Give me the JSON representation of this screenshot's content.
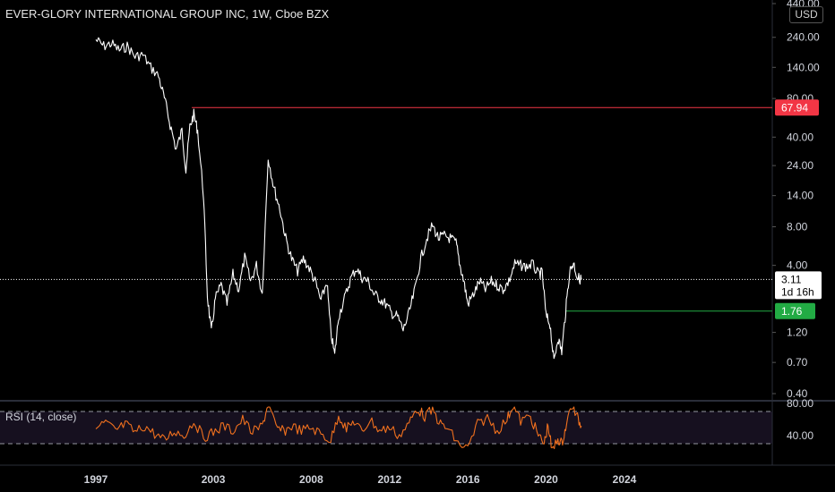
{
  "header": {
    "title": "EVER-GLORY INTERNATIONAL GROUP INC, 1W, Cboe BZX",
    "currency": "USD"
  },
  "colors": {
    "background": "#000000",
    "price_line": "#ffffff",
    "rsi_line": "#f0701e",
    "resistance": "#f23645",
    "support": "#22ab44",
    "rsi_band": "#16101f"
  },
  "chart_data": [
    {
      "type": "line",
      "title": "EVER-GLORY INTERNATIONAL GROUP INC, 1W, Cboe BZX",
      "scale": "log",
      "ylim": [
        0.4,
        440
      ],
      "y_ticks": [
        "440.00",
        "240.00",
        "140.00",
        "80.00",
        "40.00",
        "24.00",
        "14.00",
        "8.00",
        "4.00",
        "1.20",
        "0.70",
        "0.40"
      ],
      "x_ticks": [
        "1997",
        "2003",
        "2008",
        "2012",
        "2016",
        "2020",
        "2024"
      ],
      "series": [
        {
          "values": [
            [
              1997.0,
              230
            ],
            [
              1997.4,
              205
            ],
            [
              1997.8,
              215
            ],
            [
              1998.2,
              190
            ],
            [
              1998.6,
              205
            ],
            [
              1999.0,
              170
            ],
            [
              1999.4,
              175
            ],
            [
              1999.8,
              140
            ],
            [
              2000.2,
              120
            ],
            [
              2000.5,
              80
            ],
            [
              2000.8,
              50
            ],
            [
              2001.1,
              32
            ],
            [
              2001.4,
              45
            ],
            [
              2001.6,
              22
            ],
            [
              2001.8,
              48
            ],
            [
              2002.0,
              60
            ],
            [
              2002.2,
              45
            ],
            [
              2002.5,
              14
            ],
            [
              2002.7,
              2.3
            ],
            [
              2002.9,
              1.2
            ],
            [
              2003.1,
              2.2
            ],
            [
              2003.4,
              2.8
            ],
            [
              2003.7,
              2.0
            ],
            [
              2004.0,
              3.4
            ],
            [
              2004.3,
              2.6
            ],
            [
              2004.6,
              4.6
            ],
            [
              2004.9,
              3.0
            ],
            [
              2005.2,
              4.0
            ],
            [
              2005.5,
              2.4
            ],
            [
              2005.8,
              28
            ],
            [
              2006.1,
              16
            ],
            [
              2006.4,
              11
            ],
            [
              2006.7,
              6.5
            ],
            [
              2007.0,
              4.5
            ],
            [
              2007.3,
              3.6
            ],
            [
              2007.6,
              4.5
            ],
            [
              2007.9,
              3.8
            ],
            [
              2008.2,
              3.0
            ],
            [
              2008.5,
              2.1
            ],
            [
              2008.8,
              3.0
            ],
            [
              2009.0,
              1.2
            ],
            [
              2009.2,
              0.8
            ],
            [
              2009.4,
              1.6
            ],
            [
              2009.7,
              2.2
            ],
            [
              2010.0,
              3.1
            ],
            [
              2010.3,
              3.8
            ],
            [
              2010.6,
              3.2
            ],
            [
              2010.9,
              3.0
            ],
            [
              2011.2,
              2.4
            ],
            [
              2011.5,
              2.2
            ],
            [
              2011.8,
              2.0
            ],
            [
              2012.1,
              1.7
            ],
            [
              2012.4,
              1.6
            ],
            [
              2012.7,
              1.25
            ],
            [
              2013.0,
              1.7
            ],
            [
              2013.3,
              2.6
            ],
            [
              2013.6,
              4.5
            ],
            [
              2013.9,
              6.5
            ],
            [
              2014.2,
              8.2
            ],
            [
              2014.5,
              6.5
            ],
            [
              2014.8,
              6.8
            ],
            [
              2015.1,
              6.5
            ],
            [
              2015.4,
              6.0
            ],
            [
              2015.6,
              4.0
            ],
            [
              2015.8,
              3.0
            ],
            [
              2016.0,
              2.0
            ],
            [
              2016.3,
              2.4
            ],
            [
              2016.6,
              3.0
            ],
            [
              2016.9,
              2.6
            ],
            [
              2017.2,
              3.0
            ],
            [
              2017.5,
              2.8
            ],
            [
              2017.8,
              2.6
            ],
            [
              2018.1,
              3.0
            ],
            [
              2018.4,
              4.1
            ],
            [
              2018.7,
              4.0
            ],
            [
              2019.0,
              3.9
            ],
            [
              2019.3,
              4.1
            ],
            [
              2019.6,
              3.4
            ],
            [
              2019.8,
              3.5
            ],
            [
              2020.0,
              1.6
            ],
            [
              2020.2,
              1.4
            ],
            [
              2020.4,
              0.7
            ],
            [
              2020.6,
              1.1
            ],
            [
              2020.8,
              0.85
            ],
            [
              2021.0,
              1.76
            ],
            [
              2021.2,
              3.6
            ],
            [
              2021.4,
              4.2
            ],
            [
              2021.6,
              3.2
            ],
            [
              2021.8,
              3.11
            ]
          ]
        }
      ],
      "annotations": [
        {
          "label": "67.94",
          "value": 67.94,
          "from_x": 2001.9,
          "style": "resistance"
        },
        {
          "label": "1.76",
          "value": 1.76,
          "from_x": 2021.0,
          "style": "support"
        }
      ],
      "last_price": {
        "value": 3.11,
        "label": "3.11",
        "countdown": "1d 16h"
      }
    },
    {
      "type": "line",
      "title": "RSI (14, close)",
      "ylim": [
        10,
        90
      ],
      "y_ticks": [
        "80.00",
        "40.00"
      ],
      "bands": [
        30,
        70
      ],
      "series": [
        {
          "values": [
            [
              1997.0,
              48
            ],
            [
              1997.5,
              56
            ],
            [
              1998.0,
              46
            ],
            [
              1998.5,
              54
            ],
            [
              1999.0,
              44
            ],
            [
              1999.5,
              52
            ],
            [
              2000.0,
              42
            ],
            [
              2000.5,
              34
            ],
            [
              2001.0,
              46
            ],
            [
              2001.5,
              40
            ],
            [
              2002.0,
              58
            ],
            [
              2002.5,
              38
            ],
            [
              2003.0,
              44
            ],
            [
              2003.5,
              52
            ],
            [
              2004.0,
              46
            ],
            [
              2004.5,
              60
            ],
            [
              2005.0,
              44
            ],
            [
              2005.5,
              52
            ],
            [
              2005.8,
              80
            ],
            [
              2006.2,
              50
            ],
            [
              2006.6,
              45
            ],
            [
              2007.0,
              52
            ],
            [
              2007.5,
              46
            ],
            [
              2008.0,
              50
            ],
            [
              2008.5,
              42
            ],
            [
              2009.0,
              34
            ],
            [
              2009.4,
              66
            ],
            [
              2009.8,
              48
            ],
            [
              2010.2,
              58
            ],
            [
              2010.6,
              44
            ],
            [
              2011.0,
              60
            ],
            [
              2011.5,
              46
            ],
            [
              2012.0,
              50
            ],
            [
              2012.5,
              40
            ],
            [
              2013.0,
              55
            ],
            [
              2013.4,
              74
            ],
            [
              2013.8,
              64
            ],
            [
              2014.2,
              72
            ],
            [
              2014.6,
              54
            ],
            [
              2015.0,
              48
            ],
            [
              2015.5,
              30
            ],
            [
              2016.0,
              24
            ],
            [
              2016.5,
              54
            ],
            [
              2017.0,
              62
            ],
            [
              2017.5,
              46
            ],
            [
              2018.0,
              60
            ],
            [
              2018.3,
              78
            ],
            [
              2018.7,
              58
            ],
            [
              2019.2,
              64
            ],
            [
              2019.6,
              40
            ],
            [
              2019.9,
              30
            ],
            [
              2020.1,
              54
            ],
            [
              2020.3,
              20
            ],
            [
              2020.6,
              36
            ],
            [
              2020.8,
              30
            ],
            [
              2021.0,
              50
            ],
            [
              2021.3,
              78
            ],
            [
              2021.6,
              62
            ],
            [
              2021.8,
              52
            ]
          ]
        }
      ]
    }
  ]
}
